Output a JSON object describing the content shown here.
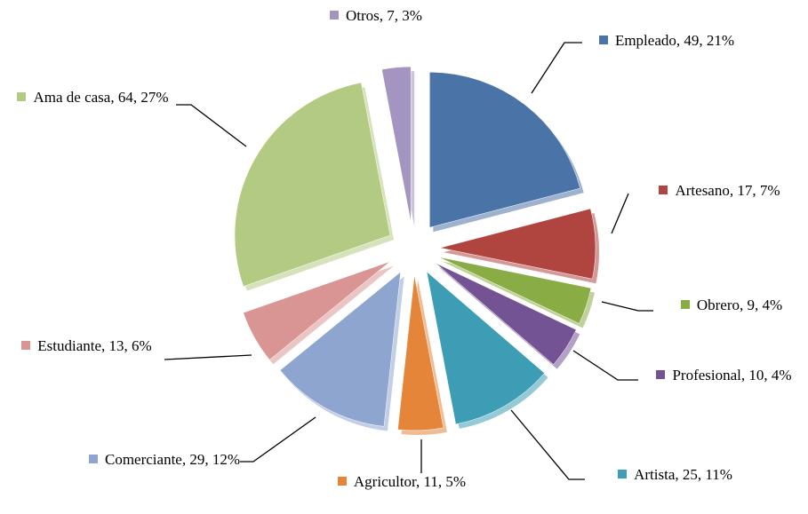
{
  "chart_data": {
    "type": "pie",
    "categories": [
      "Empleado",
      "Artesano",
      "Obrero",
      "Profesional",
      "Artista",
      "Agricultor",
      "Comerciante",
      "Estudiante",
      "Ama de casa",
      "Otros"
    ],
    "values": [
      49,
      17,
      9,
      10,
      25,
      11,
      29,
      13,
      64,
      7
    ],
    "value_labels": [
      "Empleado, 49, 21%",
      "Artesano, 17, 7%",
      "Obrero, 9, 4%",
      "Profesional, 10, 4%",
      "Artista, 25, 11%",
      "Agricultor, 11, 5%",
      "Comerciante, 29, 12%",
      "Estudiante, 13, 6%",
      "Ama de casa, 64, 27%",
      "Otros, 7, 3%"
    ],
    "colors": [
      "#4a73a8",
      "#b04540",
      "#8aac45",
      "#735393",
      "#3d9db5",
      "#e4853a",
      "#8ea6cf",
      "#d99593",
      "#b3ca82",
      "#a494c0"
    ],
    "exploded": true
  }
}
